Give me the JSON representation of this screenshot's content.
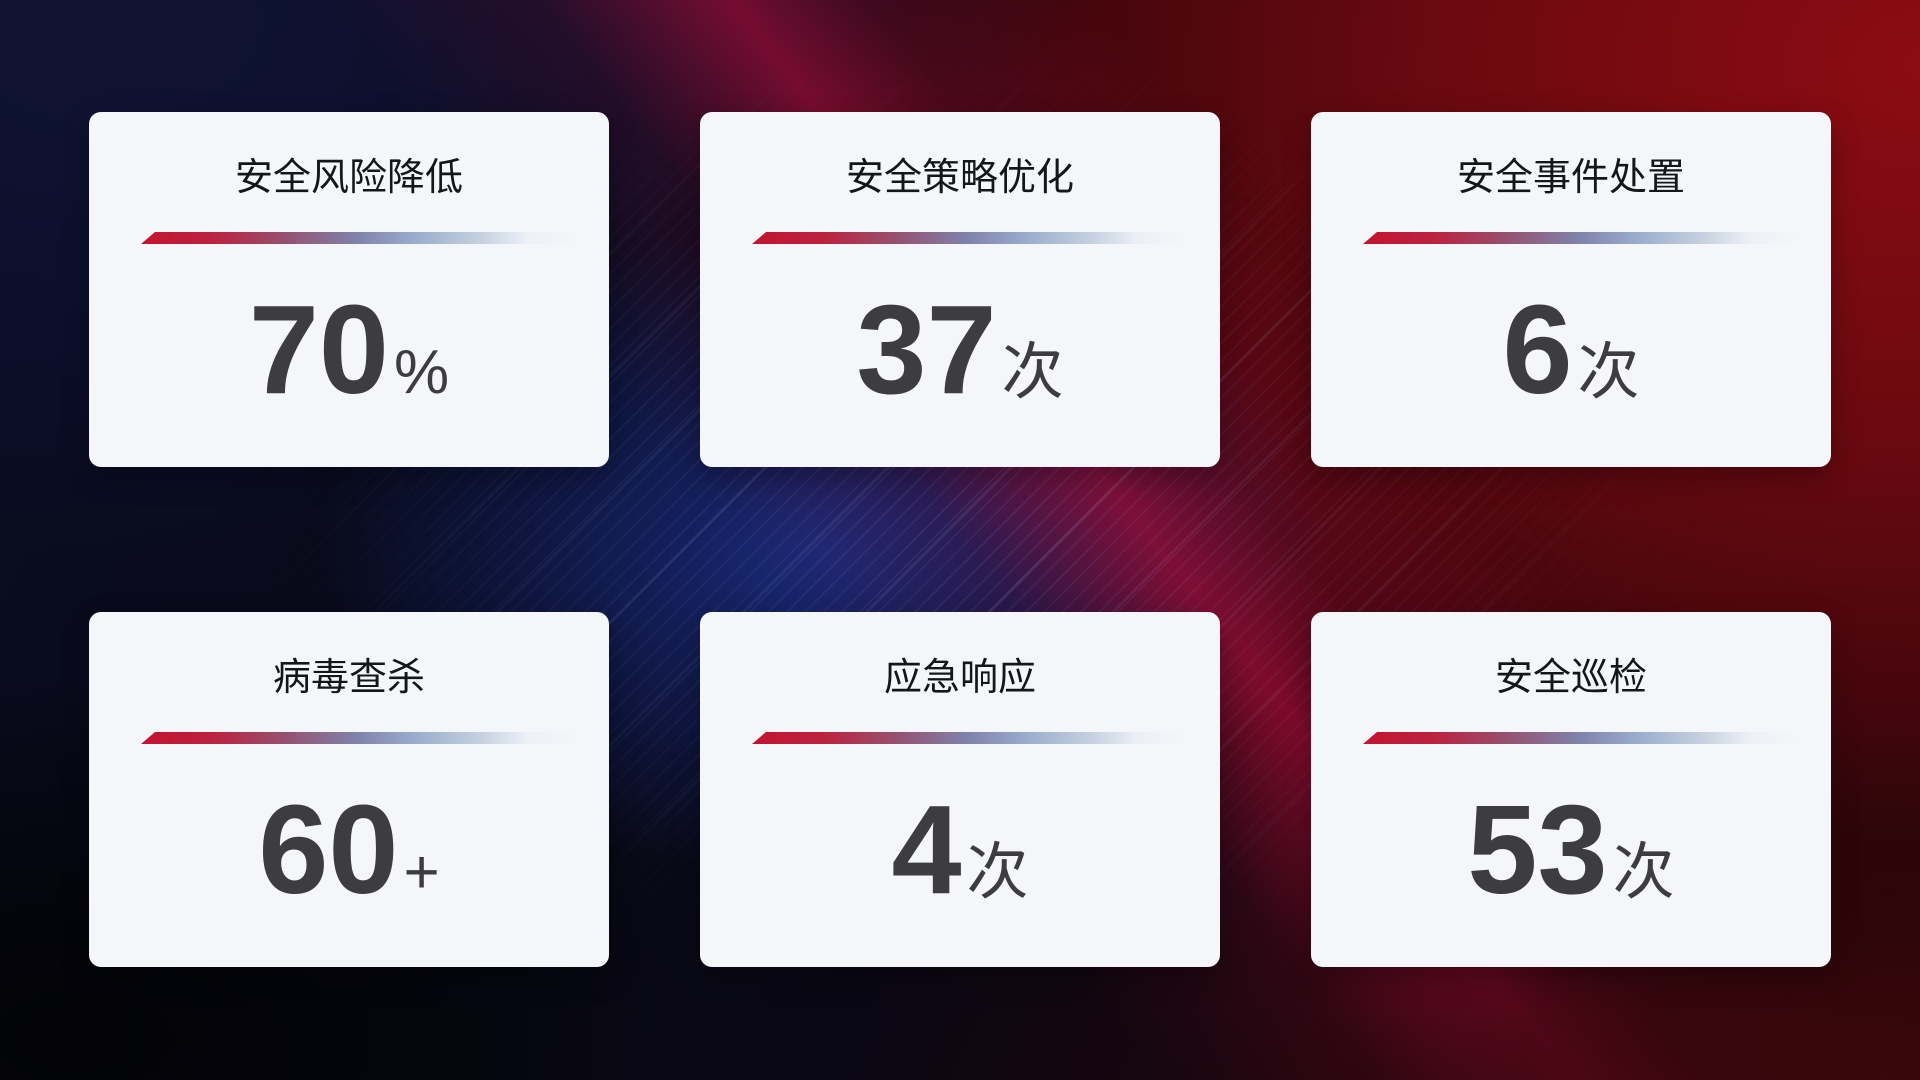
{
  "dashboard": {
    "cards": [
      {
        "title": "安全风险降低",
        "value": "70",
        "unit": "%"
      },
      {
        "title": "安全策略优化",
        "value": "37",
        "unit": "次"
      },
      {
        "title": "安全事件处置",
        "value": "6",
        "unit": "次"
      },
      {
        "title": "病毒查杀",
        "value": "60",
        "unit": "+"
      },
      {
        "title": "应急响应",
        "value": "4",
        "unit": "次"
      },
      {
        "title": "安全巡检",
        "value": "53",
        "unit": "次"
      }
    ],
    "colors": {
      "card_background": "#f4f6f9",
      "title_text": "#15161a",
      "value_text": "#3c3c41",
      "divider_red": "#c41330",
      "divider_slate_blue": "#7f82ab",
      "divider_light_end": "#c6d1e0",
      "background_navy": "#101334",
      "background_blue_glow": "#1c2f8a",
      "background_red": "#8c0c12",
      "background_maroon": "#3a070a"
    }
  }
}
